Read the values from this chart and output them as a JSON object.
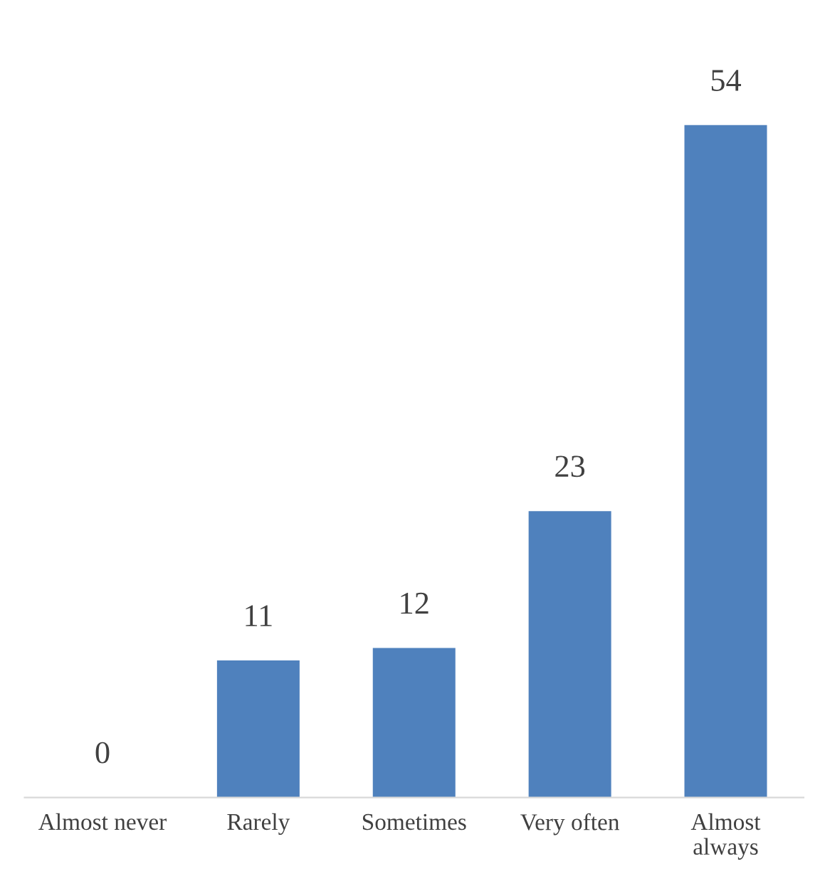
{
  "chart_data": {
    "type": "bar",
    "categories": [
      "Almost never",
      "Rarely",
      "Sometimes",
      "Very often",
      "Almost\nalways"
    ],
    "values": [
      0,
      11,
      12,
      23,
      54
    ],
    "color": "#4f81bd",
    "data_labels": true,
    "tick_labels": "x",
    "grid": false,
    "legend": false
  }
}
